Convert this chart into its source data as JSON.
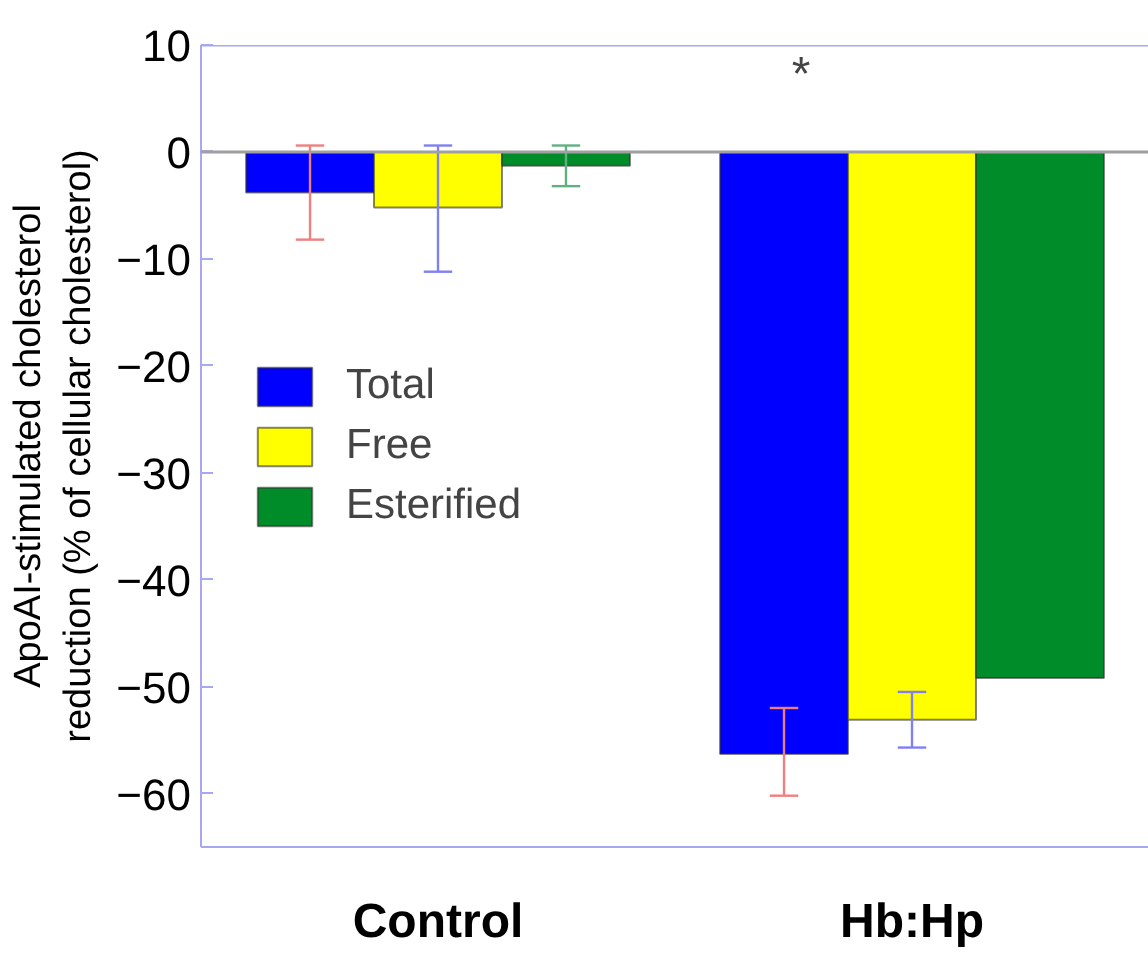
{
  "chart_data": {
    "type": "bar",
    "ylabel": "ApoAI-stimulated cholesterol\nreduction (% of cellular cholesterol)",
    "categories": [
      "Control",
      "Hb:Hp"
    ],
    "series": [
      {
        "name": "Total",
        "color": "#0000ff",
        "values": [
          -3.8,
          -56.3
        ],
        "errors": [
          [
            -8.2,
            0.6
          ],
          [
            -60.2,
            -52.0
          ]
        ]
      },
      {
        "name": "Free",
        "color": "#ffff00",
        "values": [
          -5.2,
          -53.1
        ],
        "errors": [
          [
            -11.2,
            0.6
          ],
          [
            -55.7,
            -50.5
          ]
        ]
      },
      {
        "name": "Esterified",
        "color": "#008c28",
        "values": [
          -1.3,
          -49.2
        ],
        "errors": [
          [
            -3.2,
            0.6
          ],
          null
        ]
      }
    ],
    "ylim": [
      -65,
      10
    ],
    "yticks": [
      -60,
      -50,
      -40,
      -30,
      -20,
      -10,
      0,
      10
    ],
    "ref_lines": [
      {
        "axis": "y",
        "value": 0,
        "color": "#a0a0a0"
      }
    ],
    "annotations": [
      "*"
    ],
    "grid": false,
    "legend": "left"
  }
}
